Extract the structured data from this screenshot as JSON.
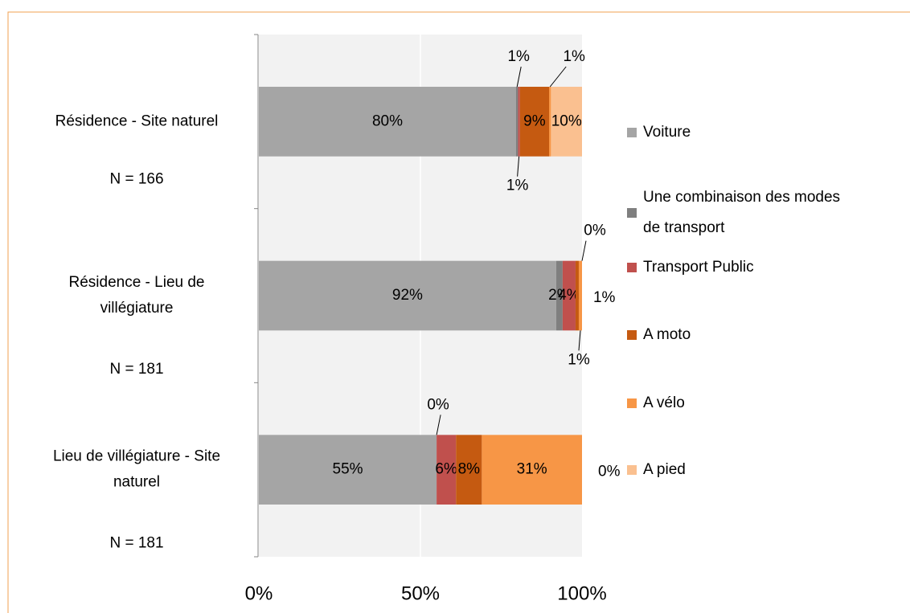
{
  "chart_data": {
    "type": "stacked_bar_horizontal",
    "categories": [
      "Résidence - Site naturel",
      "Résidence - Lieu de villégiature",
      "Lieu de villégiature  - Site naturel"
    ],
    "sample_sizes": [
      "N = 166",
      "N = 181",
      "N = 181"
    ],
    "series": [
      {
        "name": "Voiture",
        "color": "#a5a5a5",
        "values": [
          79.6,
          92,
          55
        ],
        "value_labels": [
          "80%",
          "92%",
          "55%"
        ]
      },
      {
        "name": "Une combinaison des modes de transport",
        "color": "#7f7f7f",
        "values": [
          0.6,
          2,
          0
        ],
        "value_labels": [
          "1%",
          "2%",
          "0%"
        ]
      },
      {
        "name": "Transport Public",
        "color": "#c0504d",
        "values": [
          0.6,
          4,
          6
        ],
        "value_labels": [
          "1%",
          "4%",
          "6%"
        ]
      },
      {
        "name": "A moto",
        "color": "#c55a11",
        "values": [
          9.0,
          1,
          8
        ],
        "value_labels": [
          "9%",
          "1%",
          "8%"
        ]
      },
      {
        "name": "A vélo",
        "color": "#f79646",
        "values": [
          0.6,
          1,
          31
        ],
        "value_labels": [
          "1%",
          "1%",
          "31%"
        ]
      },
      {
        "name": "A pied",
        "color": "#fac090",
        "values": [
          9.6,
          0,
          0
        ],
        "value_labels": [
          "10%",
          "0%",
          "0%"
        ]
      }
    ],
    "xlim": [
      0,
      100
    ],
    "xticks": [
      {
        "value": 0,
        "label": "0%"
      },
      {
        "value": 50,
        "label": "50%"
      },
      {
        "value": 100,
        "label": "100%"
      }
    ],
    "grid": true,
    "legend": "right"
  }
}
